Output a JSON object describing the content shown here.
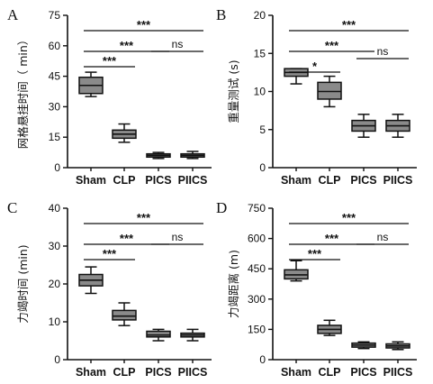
{
  "chart_data": [
    {
      "type": "box",
      "panel_label": "A",
      "ylabel": "网格悬挂时间（ min）",
      "categories": [
        "Sham",
        "CLP",
        "PICS",
        "PIICS"
      ],
      "yticks": [
        "0",
        "15",
        "30",
        "45",
        "60",
        "75"
      ],
      "ylim": [
        0,
        75
      ],
      "series": [
        {
          "boxes": [
            {
              "min": 35,
              "q1": 36.5,
              "median": 40.5,
              "q3": 44.5,
              "max": 47
            },
            {
              "min": 12.5,
              "q1": 14.5,
              "median": 16.5,
              "q3": 18.5,
              "max": 21.5
            },
            {
              "min": 4.5,
              "q1": 5.2,
              "median": 6,
              "q3": 6.8,
              "max": 7.5
            },
            {
              "min": 4.5,
              "q1": 5.2,
              "median": 6,
              "q3": 6.8,
              "max": 8
            }
          ]
        }
      ],
      "significance": [
        {
          "from": "Sham",
          "to": "CLP",
          "label": "***"
        },
        {
          "from": "Sham",
          "to": "PICS",
          "label": "***"
        },
        {
          "from": "Sham",
          "to": "PIICS",
          "label": "***"
        },
        {
          "from": "PICS",
          "to": "PIICS",
          "label": "ns"
        }
      ]
    },
    {
      "type": "box",
      "panel_label": "B",
      "ylabel": "重量测试 (s)",
      "categories": [
        "Sham",
        "CLP",
        "PICS",
        "PIICS"
      ],
      "yticks": [
        "0",
        "5",
        "10",
        "15",
        "20"
      ],
      "ylim": [
        0,
        20
      ],
      "series": [
        {
          "boxes": [
            {
              "min": 11,
              "q1": 12,
              "median": 12.5,
              "q3": 13,
              "max": 13
            },
            {
              "min": 8,
              "q1": 9,
              "median": 10,
              "q3": 11.2,
              "max": 12
            },
            {
              "min": 4,
              "q1": 4.8,
              "median": 5.5,
              "q3": 6.2,
              "max": 7
            },
            {
              "min": 4,
              "q1": 4.8,
              "median": 5.5,
              "q3": 6.2,
              "max": 7
            }
          ]
        }
      ],
      "significance": [
        {
          "from": "Sham",
          "to": "CLP",
          "label": "*"
        },
        {
          "from": "Sham",
          "to": "PICS",
          "label": "***"
        },
        {
          "from": "Sham",
          "to": "PIICS",
          "label": "***"
        },
        {
          "from": "PICS",
          "to": "PIICS",
          "label": "ns"
        }
      ]
    },
    {
      "type": "box",
      "panel_label": "C",
      "ylabel": "力竭时间 (min)",
      "categories": [
        "Sham",
        "CLP",
        "PICS",
        "PIICS"
      ],
      "yticks": [
        "0",
        "10",
        "20",
        "30",
        "40"
      ],
      "ylim": [
        0,
        40
      ],
      "series": [
        {
          "boxes": [
            {
              "min": 17.5,
              "q1": 19.5,
              "median": 21,
              "q3": 22.5,
              "max": 24.5
            },
            {
              "min": 9,
              "q1": 10.5,
              "median": 11.5,
              "q3": 13,
              "max": 15
            },
            {
              "min": 5,
              "q1": 6,
              "median": 6.5,
              "q3": 7.5,
              "max": 8
            },
            {
              "min": 5,
              "q1": 6,
              "median": 6.5,
              "q3": 7,
              "max": 8
            }
          ]
        }
      ],
      "significance": [
        {
          "from": "Sham",
          "to": "CLP",
          "label": "***"
        },
        {
          "from": "Sham",
          "to": "PICS",
          "label": "***"
        },
        {
          "from": "Sham",
          "to": "PIICS",
          "label": "***"
        },
        {
          "from": "PICS",
          "to": "PIICS",
          "label": "ns"
        }
      ]
    },
    {
      "type": "box",
      "panel_label": "D",
      "ylabel": "力竭距离 (m)",
      "categories": [
        "Sham",
        "CLP",
        "PICS",
        "PIICS"
      ],
      "yticks": [
        "0",
        "150",
        "300",
        "450",
        "600",
        "750"
      ],
      "ylim": [
        0,
        750
      ],
      "series": [
        {
          "boxes": [
            {
              "min": 390,
              "q1": 400,
              "median": 420,
              "q3": 445,
              "max": 490
            },
            {
              "min": 120,
              "q1": 130,
              "median": 150,
              "q3": 170,
              "max": 195
            },
            {
              "min": 55,
              "q1": 62,
              "median": 72,
              "q3": 82,
              "max": 88
            },
            {
              "min": 50,
              "q1": 58,
              "median": 68,
              "q3": 78,
              "max": 88
            }
          ]
        }
      ],
      "significance": [
        {
          "from": "Sham",
          "to": "CLP",
          "label": "***"
        },
        {
          "from": "Sham",
          "to": "PICS",
          "label": "***"
        },
        {
          "from": "Sham",
          "to": "PIICS",
          "label": "***"
        },
        {
          "from": "PICS",
          "to": "PIICS",
          "label": "ns"
        }
      ]
    }
  ],
  "style": {
    "box_fill": "#8a8a8a",
    "line_color": "#111111",
    "background": "#ffffff"
  }
}
